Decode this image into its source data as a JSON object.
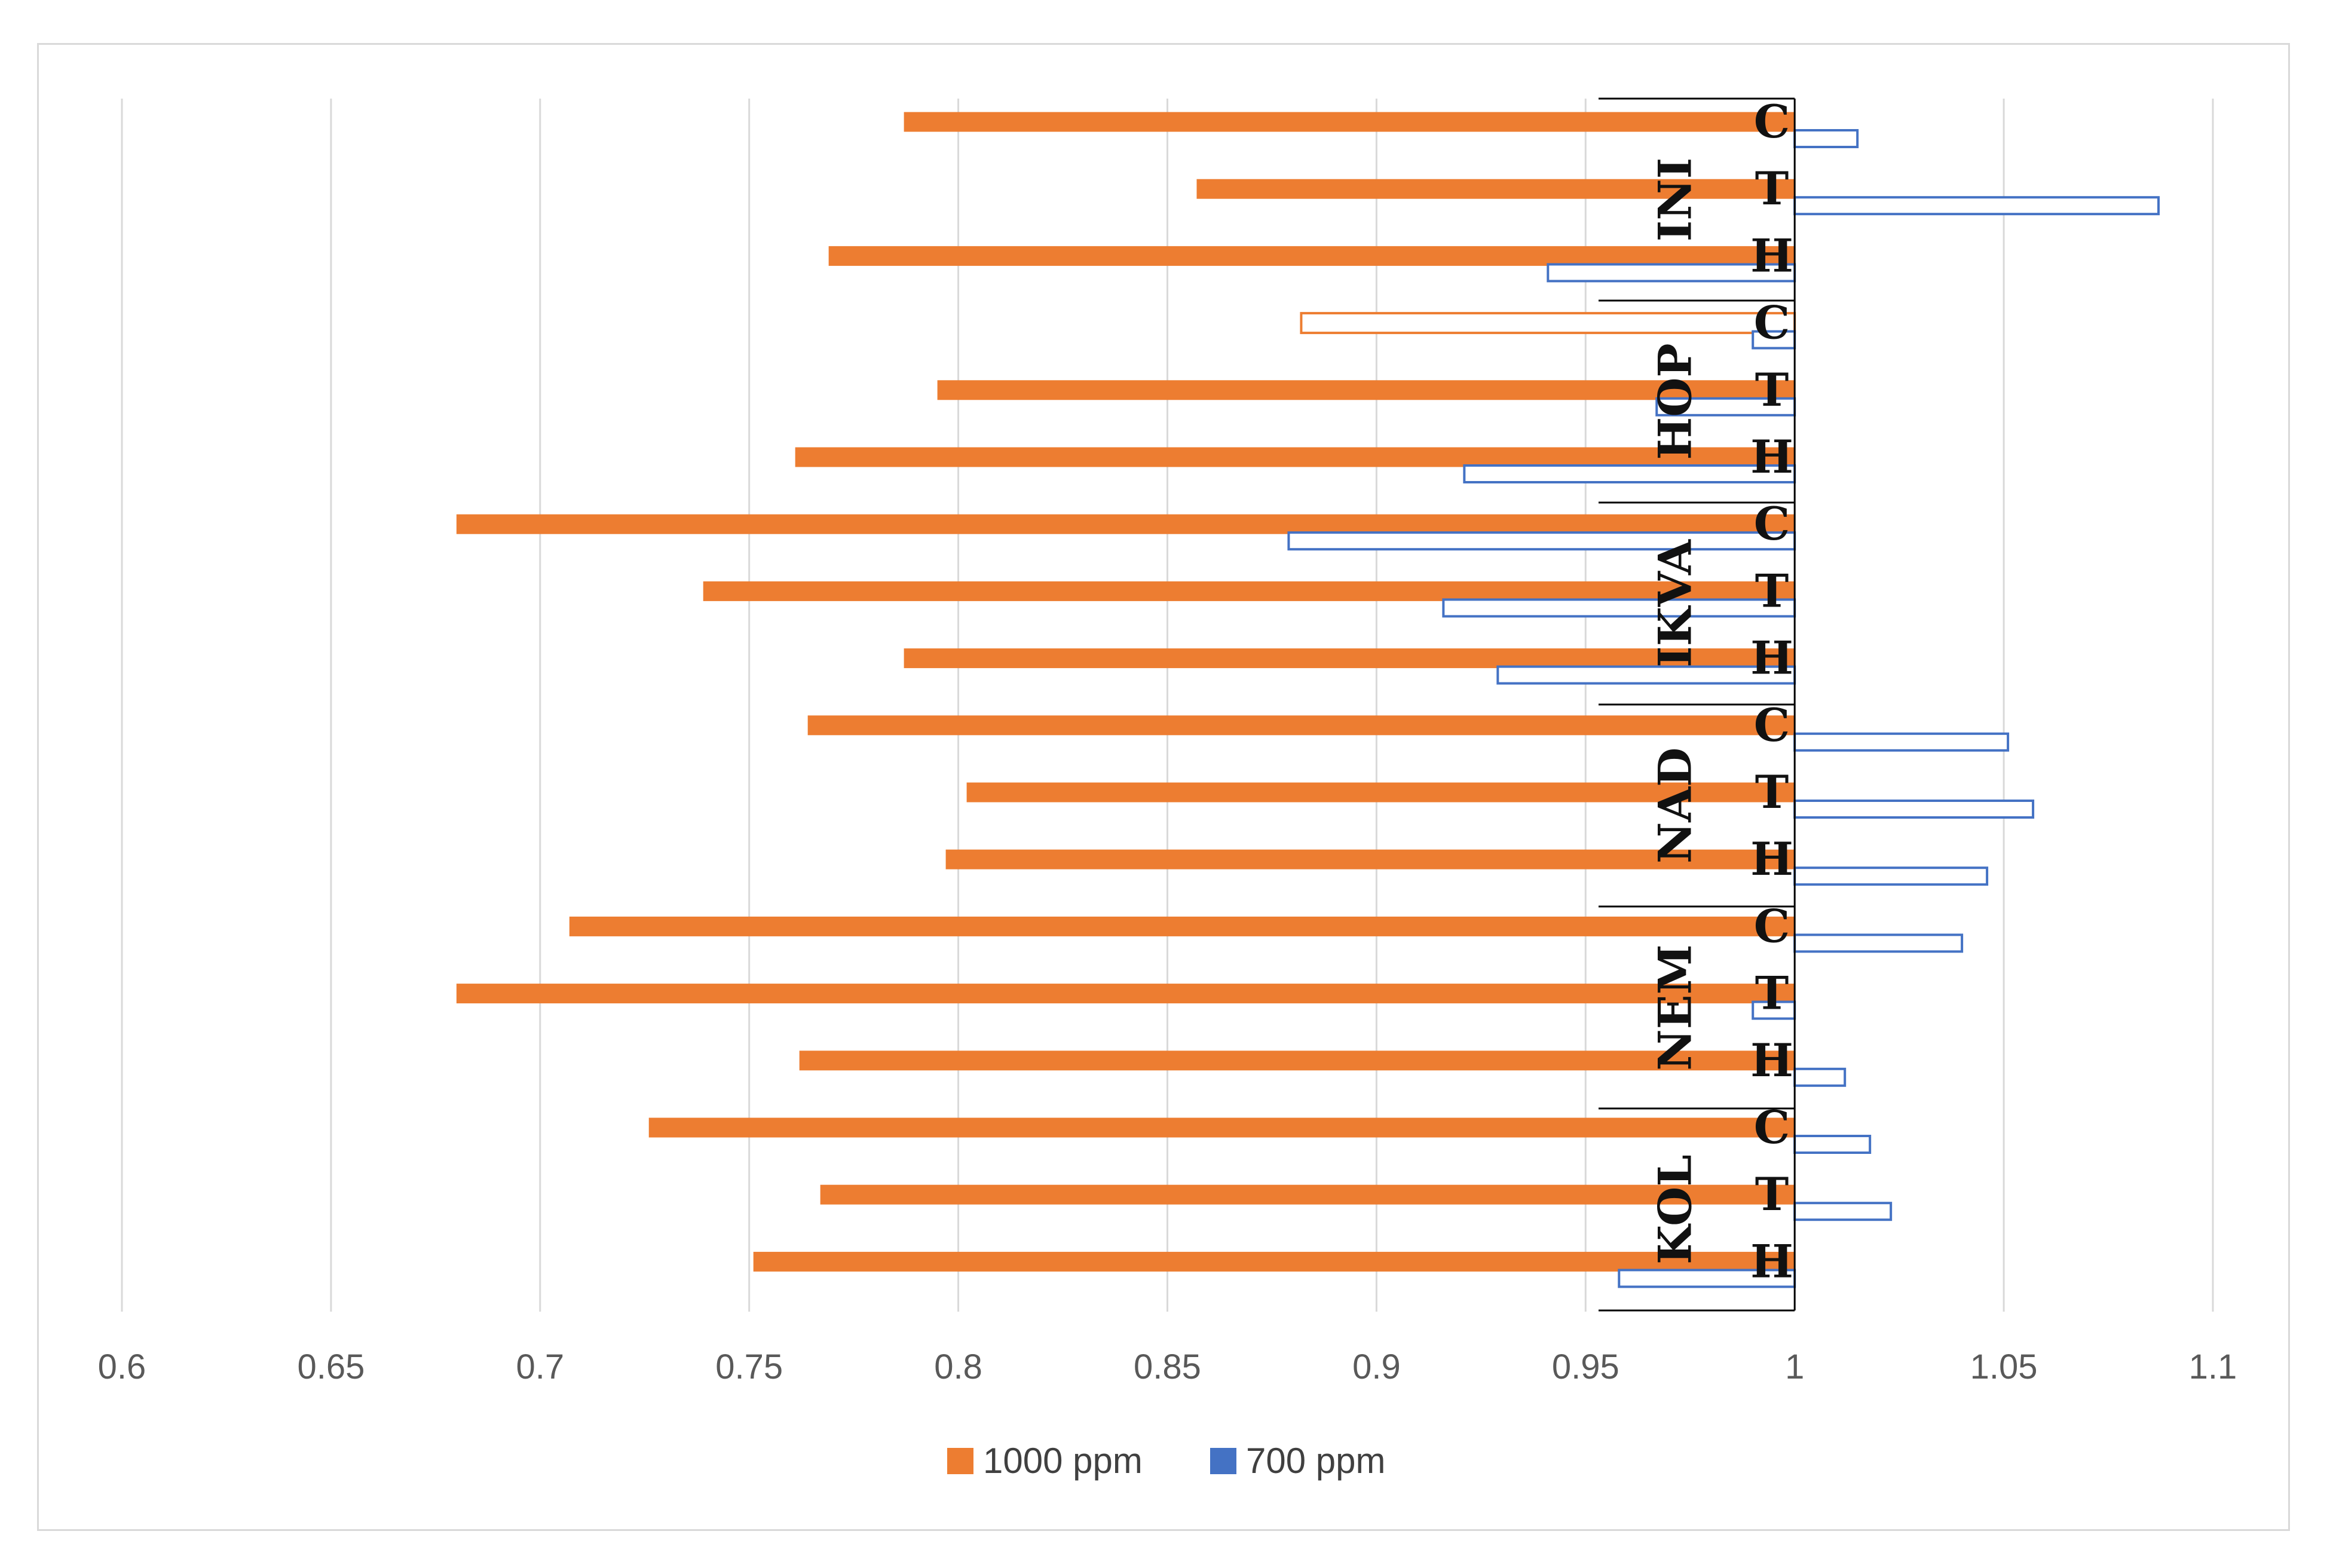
{
  "chart_data": {
    "type": "bar",
    "orientation": "horizontal",
    "title": "",
    "xlabel": "",
    "ylabel": "",
    "xlim": [
      0.6,
      1.1
    ],
    "baseline": 1,
    "x_ticks": [
      "0.6",
      "0.65",
      "0.7",
      "0.75",
      "0.8",
      "0.85",
      "0.9",
      "0.95",
      "1",
      "1.05",
      "1.1"
    ],
    "grid": "vertical",
    "legend_position": "bottom",
    "groups": [
      {
        "name": "INI",
        "categories": [
          "C",
          "T",
          "H"
        ]
      },
      {
        "name": "HOP",
        "categories": [
          "C",
          "T",
          "H"
        ]
      },
      {
        "name": "IKVA",
        "categories": [
          "C",
          "T",
          "H"
        ]
      },
      {
        "name": "NAD",
        "categories": [
          "C",
          "T",
          "H"
        ]
      },
      {
        "name": "NEM",
        "categories": [
          "C",
          "T",
          "H"
        ]
      },
      {
        "name": "KOL",
        "categories": [
          "C",
          "T",
          "H"
        ]
      }
    ],
    "series": [
      {
        "name": "1000 ppm",
        "color": "#ED7D31",
        "values": [
          0.787,
          0.857,
          0.769,
          0.882,
          0.795,
          0.761,
          0.68,
          0.739,
          0.787,
          0.764,
          0.802,
          0.797,
          0.707,
          0.68,
          0.762,
          0.726,
          0.767,
          0.751
        ],
        "hollow": [
          false,
          false,
          false,
          true,
          false,
          false,
          false,
          false,
          false,
          false,
          false,
          false,
          false,
          false,
          false,
          false,
          false,
          false
        ]
      },
      {
        "name": "700 ppm",
        "color": "#4472C4",
        "values": [
          1.015,
          1.087,
          0.941,
          0.99,
          0.967,
          0.921,
          0.879,
          0.916,
          0.929,
          1.051,
          1.057,
          1.046,
          1.04,
          0.99,
          1.012,
          1.018,
          1.023,
          0.958
        ],
        "hollow": true
      }
    ]
  }
}
